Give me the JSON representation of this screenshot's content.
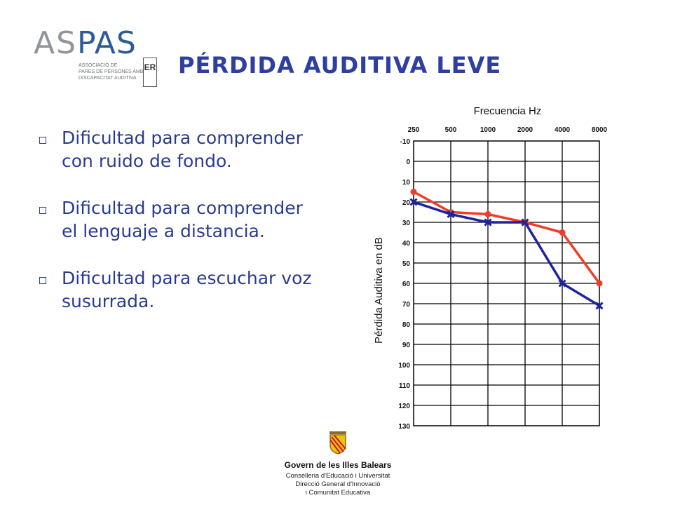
{
  "logo": {
    "part1": "AS",
    "part2": "PAS",
    "line1": "ASSOCIACIÓ DE",
    "line2": "PARES DE PERSONES AMB",
    "line3": "DISCAPACITAT AUDITIVA",
    "seal_text": "ER"
  },
  "title": "PÉRDIDA AUDITIVA LEVE",
  "bullets": [
    "Dificultad para comprender con ruido de fondo.",
    "Dificultad para comprender el lenguaje a distancia.",
    "Dificultad para escuchar voz susurrada."
  ],
  "chart_data": {
    "type": "line",
    "title": "",
    "xlabel": "Frecuencia Hz",
    "ylabel": "Pérdida Auditiva en dB",
    "categories": [
      "250",
      "500",
      "1000",
      "2000",
      "4000",
      "8000"
    ],
    "y_ticks": [
      "-10",
      "0",
      "10",
      "20",
      "30",
      "40",
      "50",
      "60",
      "70",
      "80",
      "90",
      "100",
      "110",
      "120",
      "130"
    ],
    "ylim": [
      -10,
      130
    ],
    "y_inverted": true,
    "grid": true,
    "series": [
      {
        "color": "#f03c28",
        "marker": "circle",
        "values": [
          15,
          25,
          26,
          30,
          35,
          60
        ]
      },
      {
        "color": "#1c23a0",
        "marker": "x",
        "values": [
          20,
          26,
          30,
          30,
          60,
          71
        ]
      }
    ]
  },
  "footer": {
    "name": "Govern de les Illes Balears",
    "line1": "Conselleria d'Educació i Universitat",
    "line2": "Direcció General d'Innovació",
    "line3": "i Comunitat Educativa"
  }
}
